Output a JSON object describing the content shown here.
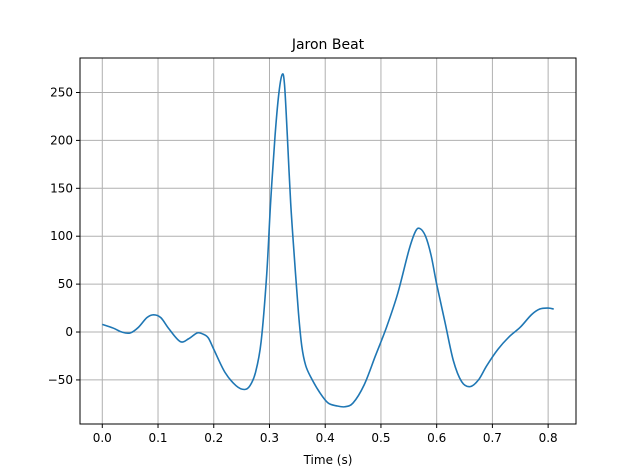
{
  "chart_data": {
    "type": "line",
    "title": "Jaron Beat",
    "xlabel": "Time (s)",
    "ylabel": "",
    "xlim": [
      -0.04,
      0.85
    ],
    "ylim": [
      -96,
      286
    ],
    "grid": true,
    "colors": {
      "line": "#1f77b4",
      "grid": "#b0b0b0",
      "axis": "#000000"
    },
    "xticks": [
      0.0,
      0.1,
      0.2,
      0.3,
      0.4,
      0.5,
      0.6,
      0.7,
      0.8
    ],
    "xtick_labels": [
      "0.0",
      "0.1",
      "0.2",
      "0.3",
      "0.4",
      "0.5",
      "0.6",
      "0.7",
      "0.8"
    ],
    "yticks": [
      -50,
      0,
      50,
      100,
      150,
      200,
      250
    ],
    "ytick_labels": [
      "−50",
      "0",
      "50",
      "100",
      "150",
      "200",
      "250"
    ],
    "series": [
      {
        "x": [
          0.0,
          0.02,
          0.035,
          0.05,
          0.065,
          0.08,
          0.092,
          0.105,
          0.12,
          0.14,
          0.155,
          0.17,
          0.18,
          0.19,
          0.2,
          0.22,
          0.24,
          0.255,
          0.265,
          0.275,
          0.285,
          0.295,
          0.302,
          0.31,
          0.317,
          0.323,
          0.327,
          0.332,
          0.338,
          0.345,
          0.352,
          0.358,
          0.365,
          0.375,
          0.39,
          0.405,
          0.42,
          0.435,
          0.45,
          0.47,
          0.49,
          0.51,
          0.53,
          0.55,
          0.562,
          0.57,
          0.58,
          0.59,
          0.6,
          0.615,
          0.63,
          0.645,
          0.66,
          0.675,
          0.69,
          0.71,
          0.73,
          0.75,
          0.77,
          0.785,
          0.8,
          0.81
        ],
        "y": [
          8,
          4,
          0,
          -1,
          5,
          15,
          18,
          15,
          3,
          -10,
          -7,
          -1,
          -2,
          -6,
          -18,
          -42,
          -56,
          -60,
          -56,
          -42,
          -10,
          60,
          135,
          205,
          250,
          269,
          258,
          205,
          135,
          75,
          20,
          -15,
          -35,
          -48,
          -63,
          -74,
          -77,
          -78,
          -74,
          -55,
          -25,
          5,
          40,
          85,
          105,
          108,
          100,
          80,
          50,
          10,
          -30,
          -52,
          -57,
          -50,
          -35,
          -18,
          -5,
          5,
          18,
          24,
          25,
          24
        ]
      }
    ]
  }
}
